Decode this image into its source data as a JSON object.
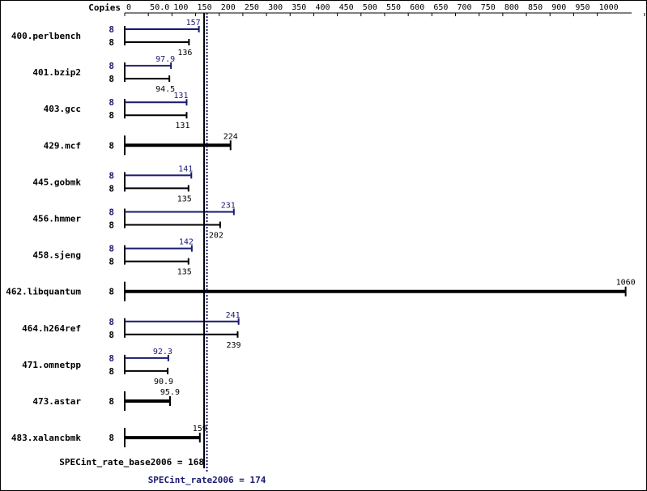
{
  "chart_data": {
    "type": "bar",
    "orientation": "horizontal",
    "copies_label": "Copies",
    "xticks": [
      "0",
      "50.0",
      "100",
      "150",
      "200",
      "250",
      "300",
      "350",
      "400",
      "450",
      "500",
      "550",
      "600",
      "650",
      "700",
      "750",
      "800",
      "850",
      "900",
      "950",
      "1000",
      "1100"
    ],
    "xlim": [
      0,
      1100
    ],
    "colors": {
      "peak": "#191970",
      "base": "#000000"
    },
    "benchmarks": [
      {
        "name": "400.perlbench",
        "peak": {
          "copies": "8",
          "value": 157,
          "label": "157"
        },
        "base": {
          "copies": "8",
          "value": 136,
          "label": "136"
        }
      },
      {
        "name": "401.bzip2",
        "peak": {
          "copies": "8",
          "value": 97.9,
          "label": "97.9"
        },
        "base": {
          "copies": "8",
          "value": 94.5,
          "label": "94.5"
        }
      },
      {
        "name": "403.gcc",
        "peak": {
          "copies": "8",
          "value": 131,
          "label": "131"
        },
        "base": {
          "copies": "8",
          "value": 131,
          "label": "131"
        }
      },
      {
        "name": "429.mcf",
        "combined": {
          "copies": "8",
          "value": 224,
          "label": "224"
        }
      },
      {
        "name": "445.gobmk",
        "peak": {
          "copies": "8",
          "value": 141,
          "label": "141"
        },
        "base": {
          "copies": "8",
          "value": 135,
          "label": "135"
        }
      },
      {
        "name": "456.hmmer",
        "peak": {
          "copies": "8",
          "value": 231,
          "label": "231"
        },
        "base": {
          "copies": "8",
          "value": 202,
          "label": "202"
        }
      },
      {
        "name": "458.sjeng",
        "peak": {
          "copies": "8",
          "value": 142,
          "label": "142"
        },
        "base": {
          "copies": "8",
          "value": 135,
          "label": "135"
        }
      },
      {
        "name": "462.libquantum",
        "combined": {
          "copies": "8",
          "value": 1060,
          "label": "1060"
        }
      },
      {
        "name": "464.h264ref",
        "peak": {
          "copies": "8",
          "value": 241,
          "label": "241"
        },
        "base": {
          "copies": "8",
          "value": 239,
          "label": "239"
        }
      },
      {
        "name": "471.omnetpp",
        "peak": {
          "copies": "8",
          "value": 92.3,
          "label": "92.3"
        },
        "base": {
          "copies": "8",
          "value": 90.9,
          "label": "90.9"
        }
      },
      {
        "name": "473.astar",
        "combined": {
          "copies": "8",
          "value": 95.9,
          "label": "95.9"
        }
      },
      {
        "name": "483.xalancbmk",
        "combined": {
          "copies": "8",
          "value": 159,
          "label": "159"
        }
      }
    ],
    "base_mean": {
      "label": "SPECint_rate_base2006 = 168",
      "value": 168
    },
    "peak_mean": {
      "label": "SPECint_rate2006 = 174",
      "value": 174
    }
  }
}
